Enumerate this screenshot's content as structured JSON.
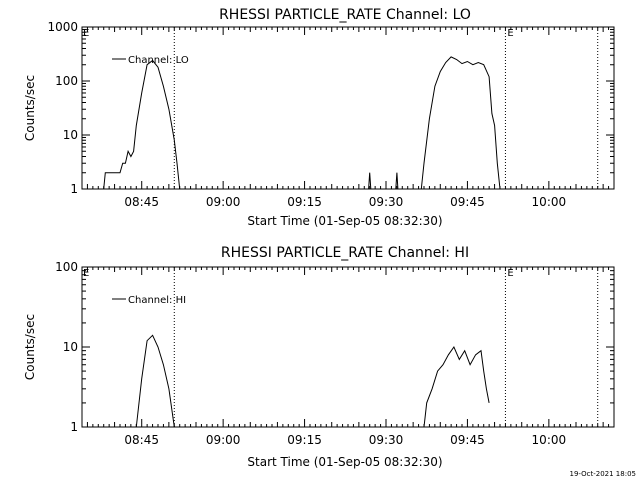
{
  "footer": {
    "timestamp": "19-Oct-2021 18:05"
  },
  "chart_data": [
    {
      "type": "line",
      "title": "RHESSI PARTICLE_RATE Channel: LO",
      "xlabel": "Start Time (01-Sep-05 08:32:30)",
      "ylabel": "Counts/sec",
      "yscale": "log",
      "ylim": [
        1,
        1000
      ],
      "xlim": [
        "08:34",
        "10:12"
      ],
      "y_ticks": [
        "1",
        "10",
        "100",
        "1000"
      ],
      "x_ticks": [
        "08:45",
        "09:00",
        "09:15",
        "09:30",
        "09:45",
        "10:00"
      ],
      "legend": {
        "label": "Channel: LO",
        "placement": "top-left"
      },
      "markers": [
        {
          "time": "08:51",
          "label": ""
        },
        {
          "time": "09:52",
          "label": "E"
        },
        {
          "time": "10:09",
          "label": ""
        }
      ],
      "series": [
        {
          "name": "Channel: LO",
          "points": [
            [
              "08:38.0",
              1
            ],
            [
              "08:38.3",
              2
            ],
            [
              "08:39.5",
              2
            ],
            [
              "08:41.0",
              2
            ],
            [
              "08:41.5",
              3
            ],
            [
              "08:42.0",
              3
            ],
            [
              "08:42.5",
              5
            ],
            [
              "08:43.0",
              4
            ],
            [
              "08:43.5",
              5
            ],
            [
              "08:44.0",
              15
            ],
            [
              "08:45.0",
              60
            ],
            [
              "08:46.0",
              200
            ],
            [
              "08:47.0",
              240
            ],
            [
              "08:48.0",
              180
            ],
            [
              "08:49.0",
              80
            ],
            [
              "08:50.0",
              30
            ],
            [
              "08:51.0",
              8
            ],
            [
              "08:51.5",
              3
            ],
            [
              "08:52.0",
              1
            ],
            [
              "09:26.8",
              1
            ],
            [
              "09:27.0",
              2
            ],
            [
              "09:27.2",
              1
            ],
            [
              "09:31.8",
              1
            ],
            [
              "09:32.0",
              2
            ],
            [
              "09:32.2",
              1
            ],
            [
              "09:36.5",
              1
            ],
            [
              "09:37.0",
              3
            ],
            [
              "09:38.0",
              20
            ],
            [
              "09:39.0",
              80
            ],
            [
              "09:40.0",
              150
            ],
            [
              "09:41.0",
              220
            ],
            [
              "09:42.0",
              280
            ],
            [
              "09:43.0",
              250
            ],
            [
              "09:44.0",
              210
            ],
            [
              "09:45.0",
              230
            ],
            [
              "09:46.0",
              200
            ],
            [
              "09:47.0",
              220
            ],
            [
              "09:48.0",
              200
            ],
            [
              "09:49.0",
              120
            ],
            [
              "09:49.5",
              25
            ],
            [
              "09:50.0",
              15
            ],
            [
              "09:50.5",
              3
            ],
            [
              "09:51.0",
              1
            ]
          ]
        }
      ]
    },
    {
      "type": "line",
      "title": "RHESSI PARTICLE_RATE Channel: HI",
      "xlabel": "Start Time (01-Sep-05 08:32:30)",
      "ylabel": "Counts/sec",
      "yscale": "log",
      "ylim": [
        1,
        100
      ],
      "xlim": [
        "08:34",
        "10:12"
      ],
      "y_ticks": [
        "1",
        "10",
        "100"
      ],
      "x_ticks": [
        "08:45",
        "09:00",
        "09:15",
        "09:30",
        "09:45",
        "10:00"
      ],
      "legend": {
        "label": "Channel: HI",
        "placement": "top-left"
      },
      "markers": [
        {
          "time": "08:51",
          "label": ""
        },
        {
          "time": "09:52",
          "label": "E"
        },
        {
          "time": "10:09",
          "label": ""
        }
      ],
      "series": [
        {
          "name": "Channel: HI",
          "points": [
            [
              "08:44.0",
              1
            ],
            [
              "08:45.0",
              4
            ],
            [
              "08:46.0",
              12
            ],
            [
              "08:47.0",
              14
            ],
            [
              "08:48.0",
              10
            ],
            [
              "08:49.0",
              6
            ],
            [
              "08:50.0",
              3
            ],
            [
              "08:51.0",
              1
            ],
            [
              "09:37.0",
              1
            ],
            [
              "09:37.5",
              2
            ],
            [
              "09:38.5",
              3
            ],
            [
              "09:39.5",
              5
            ],
            [
              "09:40.5",
              6
            ],
            [
              "09:41.5",
              8
            ],
            [
              "09:42.5",
              10
            ],
            [
              "09:43.5",
              7
            ],
            [
              "09:44.5",
              9
            ],
            [
              "09:45.5",
              6
            ],
            [
              "09:46.5",
              8
            ],
            [
              "09:47.5",
              9
            ],
            [
              "09:48.0",
              5
            ],
            [
              "09:48.5",
              3
            ],
            [
              "09:49.0",
              2
            ]
          ]
        }
      ]
    }
  ]
}
